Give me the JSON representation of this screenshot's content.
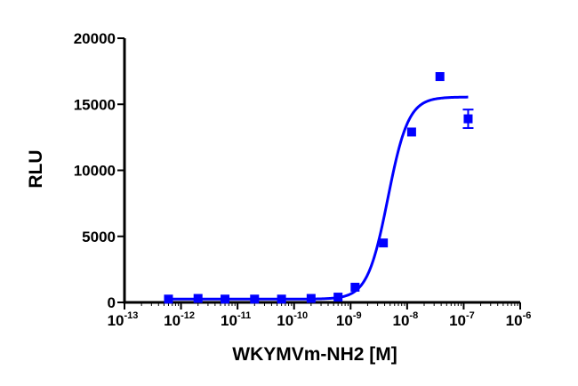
{
  "chart_data": {
    "type": "scatter",
    "title": "",
    "xlabel": "WKYMVm-NH2 [M]",
    "ylabel": "RLU",
    "x_scale": "log",
    "xlim": [
      1e-13,
      1e-06
    ],
    "ylim": [
      0,
      20000
    ],
    "grid": false,
    "x_ticks": [
      {
        "base": "10",
        "exp": "-13",
        "value": 1e-13
      },
      {
        "base": "10",
        "exp": "-12",
        "value": 1e-12
      },
      {
        "base": "10",
        "exp": "-11",
        "value": 1e-11
      },
      {
        "base": "10",
        "exp": "-10",
        "value": 1e-10
      },
      {
        "base": "10",
        "exp": "-9",
        "value": 1e-09
      },
      {
        "base": "10",
        "exp": "-8",
        "value": 1e-08
      },
      {
        "base": "10",
        "exp": "-7",
        "value": 1e-07
      },
      {
        "base": "10",
        "exp": "-6",
        "value": 1e-06
      }
    ],
    "y_ticks": [
      {
        "label": "0",
        "value": 0
      },
      {
        "label": "5000",
        "value": 5000
      },
      {
        "label": "10000",
        "value": 10000
      },
      {
        "label": "15000",
        "value": 15000
      },
      {
        "label": "20000",
        "value": 20000
      }
    ],
    "series": [
      {
        "color": "#0000ff",
        "marker": "square",
        "points": [
          {
            "x": 6e-13,
            "y": 250
          },
          {
            "x": 2e-12,
            "y": 300
          },
          {
            "x": 6e-12,
            "y": 250
          },
          {
            "x": 2e-11,
            "y": 250
          },
          {
            "x": 6e-11,
            "y": 250
          },
          {
            "x": 2e-10,
            "y": 300
          },
          {
            "x": 6e-10,
            "y": 400
          },
          {
            "x": 1.2e-09,
            "y": 1150
          },
          {
            "x": 3.8e-09,
            "y": 4500
          },
          {
            "x": 1.2e-08,
            "y": 12900
          },
          {
            "x": 3.8e-08,
            "y": 17100
          },
          {
            "x": 1.2e-07,
            "y": 13900,
            "error": 700
          }
        ]
      }
    ],
    "fit_curve": {
      "type": "sigmoidal dose-response",
      "color": "#0000ff",
      "bottom": 250,
      "top": 15550,
      "log_ec50": -8.34,
      "hill_slope": 2.4,
      "x_range": [
        6e-13,
        1.2e-07
      ]
    }
  }
}
